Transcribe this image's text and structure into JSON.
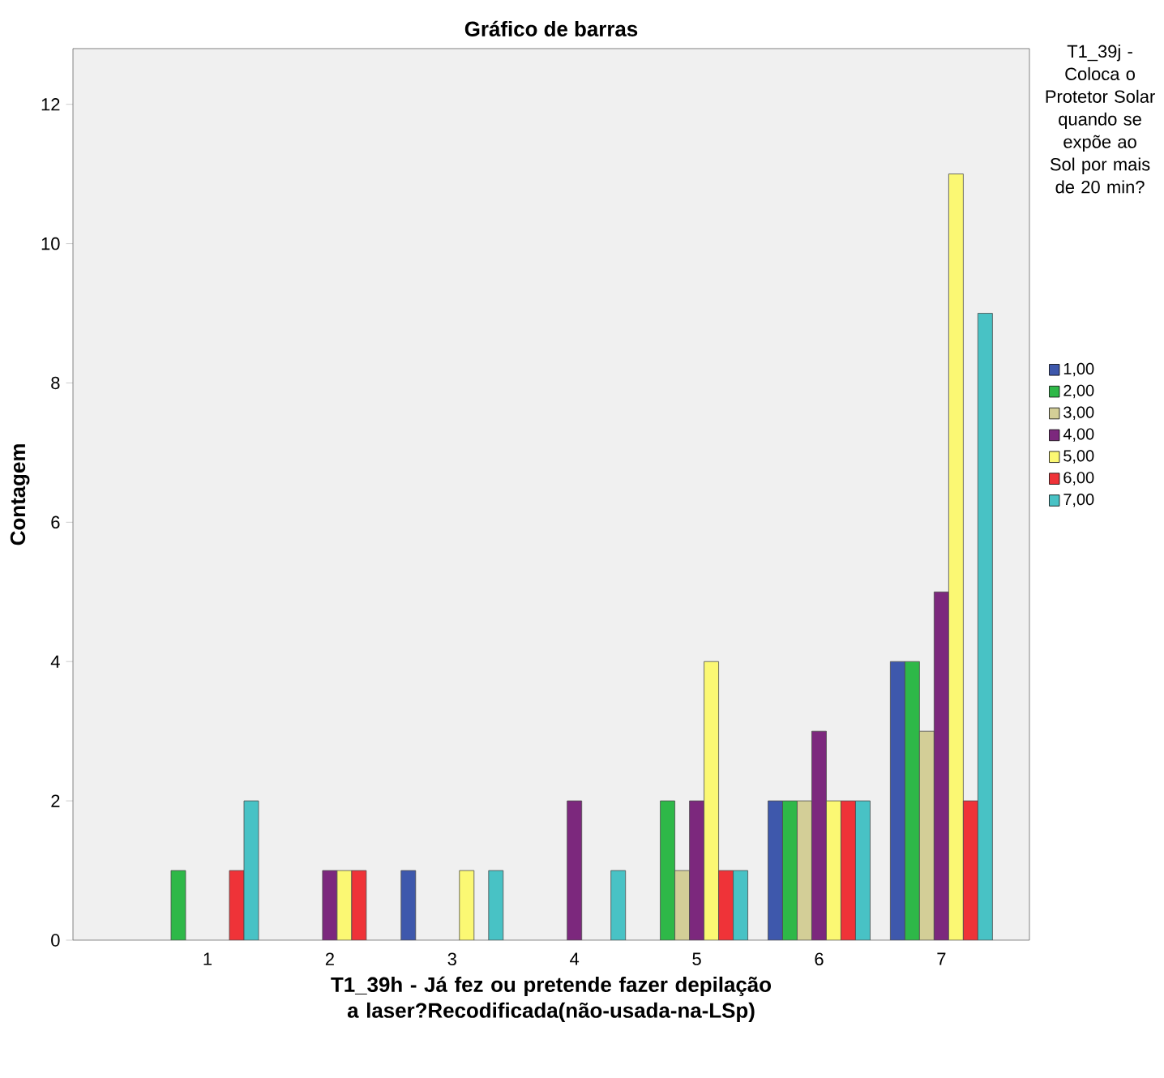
{
  "chart_data": {
    "type": "bar",
    "title": "Gráfico de barras",
    "xlabel": "T1_39h -  Já fez ou pretende fazer depilação a laser?Recodificada(não-usada-na-LSp)",
    "ylabel": "Contagem",
    "legend_title": "T1_39j - Coloca o Protetor Solar quando se expõe ao Sol por mais de 20 min?",
    "legend": "right",
    "categories": [
      "1",
      "2",
      "3",
      "4",
      "5",
      "6",
      "7"
    ],
    "series": [
      {
        "name": "1,00",
        "color": "#3e58ac",
        "values": [
          null,
          null,
          1,
          null,
          null,
          2,
          4
        ]
      },
      {
        "name": "2,00",
        "color": "#2eb848",
        "values": [
          1,
          null,
          null,
          null,
          2,
          2,
          4
        ]
      },
      {
        "name": "3,00",
        "color": "#d3ce97",
        "values": [
          null,
          null,
          null,
          null,
          1,
          2,
          3
        ]
      },
      {
        "name": "4,00",
        "color": "#7c287d",
        "values": [
          null,
          1,
          null,
          2,
          2,
          3,
          5
        ]
      },
      {
        "name": "5,00",
        "color": "#fbf873",
        "values": [
          null,
          1,
          1,
          null,
          4,
          2,
          11
        ]
      },
      {
        "name": "6,00",
        "color": "#ef3338",
        "values": [
          1,
          1,
          null,
          null,
          1,
          2,
          2
        ]
      },
      {
        "name": "7,00",
        "color": "#48c2c5",
        "values": [
          2,
          null,
          1,
          1,
          1,
          2,
          9
        ]
      }
    ],
    "ylim": [
      0,
      12.8
    ],
    "yticks": [
      0,
      2,
      4,
      6,
      8,
      10,
      12
    ]
  }
}
